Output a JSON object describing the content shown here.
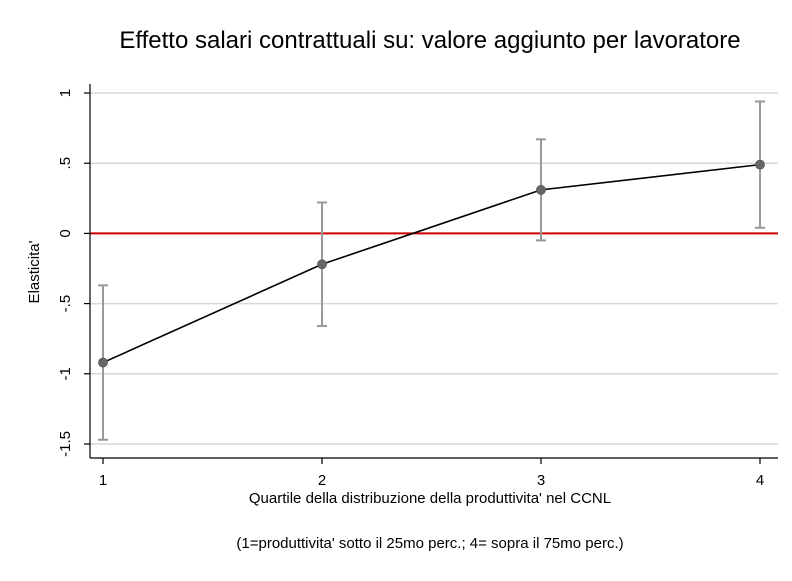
{
  "chart_data": {
    "type": "line",
    "title": "Effetto salari contrattuali su: valore aggiunto per lavoratore",
    "xlabel": "Quartile della distribuzione della produttivita' nel CCNL",
    "ylabel": "Elasticita'",
    "note": "(1=produttivita' sotto il 25mo perc.;  4= sopra il 75mo perc.)",
    "x": [
      1,
      2,
      3,
      4
    ],
    "xticks": [
      1,
      2,
      3,
      4
    ],
    "xtick_labels": [
      "1",
      "2",
      "3",
      "4"
    ],
    "xlim": [
      1,
      4
    ],
    "yticks": [
      -1.5,
      -1,
      -0.5,
      0,
      0.5,
      1
    ],
    "ytick_labels": [
      "-1.5",
      "-1",
      "-.5",
      "0",
      ".5",
      "1"
    ],
    "ylim": [
      -1.6,
      1.05
    ],
    "grid": true,
    "reference_line": {
      "y": 0,
      "color": "#cc0000"
    },
    "series": [
      {
        "values": [
          -0.92,
          -0.22,
          0.31,
          0.49
        ],
        "lower": [
          -1.47,
          -0.66,
          -0.05,
          0.04
        ],
        "upper": [
          -0.37,
          0.22,
          0.67,
          0.94
        ],
        "line_color": "#000000",
        "marker_color": "#666666",
        "errorbar_color": "#999999"
      }
    ]
  }
}
